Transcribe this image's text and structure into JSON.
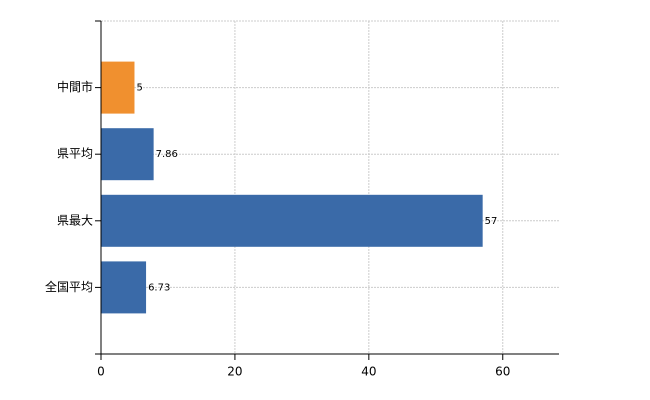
{
  "chart_data": {
    "type": "bar",
    "orientation": "horizontal",
    "categories": [
      "中間市",
      "県平均",
      "県最大",
      "全国平均"
    ],
    "values": [
      5,
      7.86,
      57,
      6.73
    ],
    "colors": [
      "#f0902f",
      "#3a6aa8",
      "#3a6aa8",
      "#3a6aa8"
    ],
    "xlim": [
      0,
      68.4
    ],
    "xticks": [
      0,
      20,
      40,
      60
    ],
    "grid": true
  }
}
